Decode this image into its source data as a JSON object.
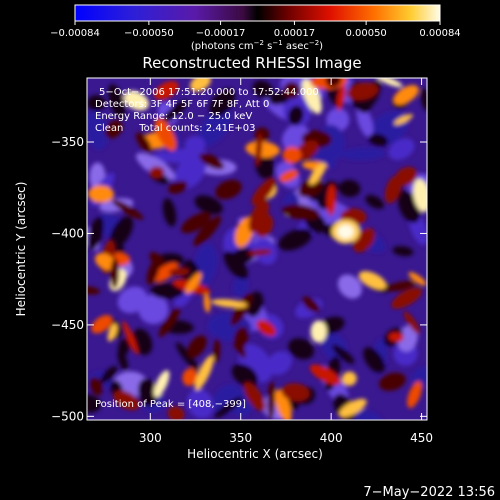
{
  "chart_data": {
    "type": "heatmap",
    "title": "Reconstructed RHESSI Image",
    "xlabel": "Heliocentric X (arcsec)",
    "ylabel": "Heliocentric Y (arcsec)",
    "xlim": [
      265,
      453
    ],
    "ylim": [
      -502,
      -315
    ],
    "x_ticks": [
      300,
      350,
      400,
      450
    ],
    "y_ticks": [
      -350,
      -400,
      -450,
      -500
    ],
    "colorbar": {
      "label_prefix": "(photons cm",
      "label_exp1": "−2",
      "label_mid": " s",
      "label_exp2": "−1",
      "label_mid2": " asec",
      "label_exp3": "−2",
      "label_suffix": ")",
      "range": [
        -0.00084,
        0.00084
      ],
      "tick_labels": [
        "−0.00084",
        "−0.00050",
        "−0.00017",
        "0.00017",
        "0.00050",
        "0.00084"
      ],
      "tick_values": [
        -0.00084,
        -0.0005,
        -0.00017,
        0.00017,
        0.0005,
        0.00084
      ]
    },
    "annotations": {
      "time": "5−Oct−2006 17:51:20.000 to 17:52:44.000",
      "detectors": "Detectors: 3F 4F 5F 6F 7F 8F, Att 0",
      "energy": "Energy Range: 12.0 − 25.0 keV",
      "method": "Clean     Total counts: 2.41E+03",
      "peak": "Position of Peak = [408,−399]"
    },
    "peak": [
      408,
      -399
    ]
  },
  "footer_timestamp": "7−May−2022 13:56"
}
